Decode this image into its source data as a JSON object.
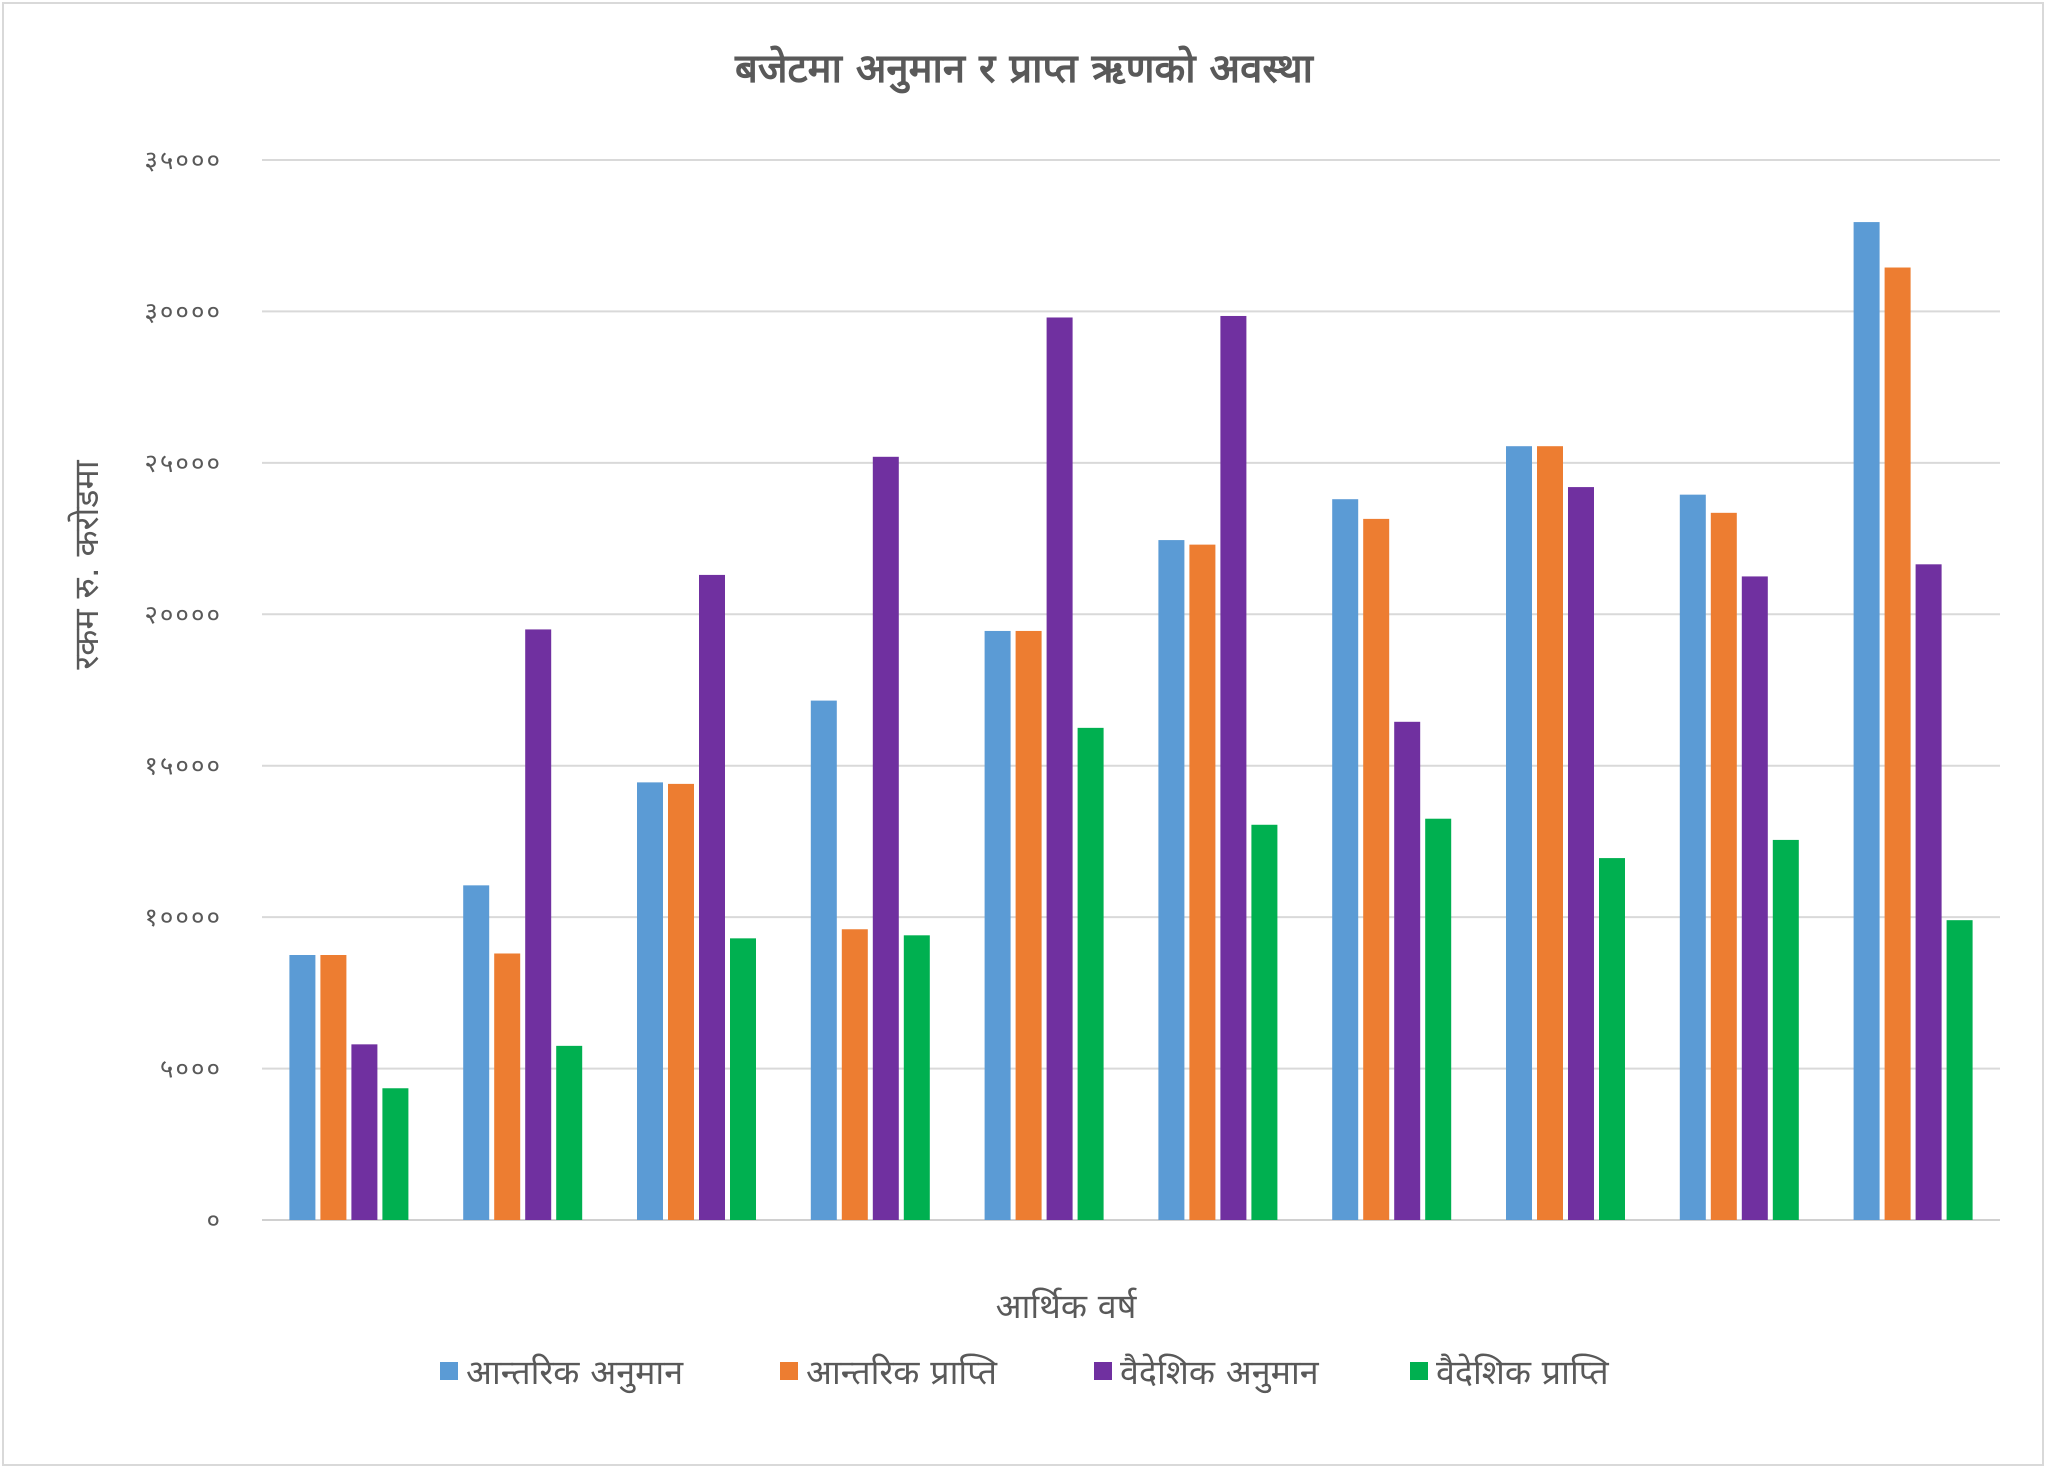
{
  "chart_data": {
    "type": "bar",
    "title": "बजेटमा अनुमान र प्राप्त ऋणको अवस्था",
    "xlabel": "आर्थिक वर्ष",
    "ylabel": "रकम रु. करोडमा",
    "ylim": [
      0,
      35000
    ],
    "yticks": [
      0,
      5000,
      10000,
      15000,
      20000,
      25000,
      30000,
      35000
    ],
    "ytick_labels": [
      "०",
      "५०००",
      "१००००",
      "१५०००",
      "२००००",
      "२५०००",
      "३००००",
      "३५०००"
    ],
    "categories": [
      "",
      "",
      "",
      "",
      "",
      "",
      "",
      "",
      "",
      ""
    ],
    "grid": true,
    "legend_position": "bottom",
    "series": [
      {
        "name": "आन्तरिक अनुमान",
        "color": "#5b9bd5",
        "values": [
          8750,
          11050,
          14450,
          17150,
          19450,
          22450,
          23800,
          25550,
          23950,
          32950
        ]
      },
      {
        "name": "आन्तरिक प्राप्ति",
        "color": "#ed7d31",
        "values": [
          8750,
          8800,
          14400,
          9600,
          19450,
          22300,
          23150,
          25550,
          23350,
          31450
        ]
      },
      {
        "name": "वैदेशिक अनुमान",
        "color": "#7030a0",
        "values": [
          5800,
          19500,
          21300,
          25200,
          29800,
          29850,
          16450,
          24200,
          21250,
          21650
        ]
      },
      {
        "name": "वैदेशिक प्राप्ति",
        "color": "#00b050",
        "values": [
          4350,
          5750,
          9300,
          9400,
          16250,
          13050,
          13250,
          11950,
          12550,
          9900
        ]
      }
    ]
  }
}
